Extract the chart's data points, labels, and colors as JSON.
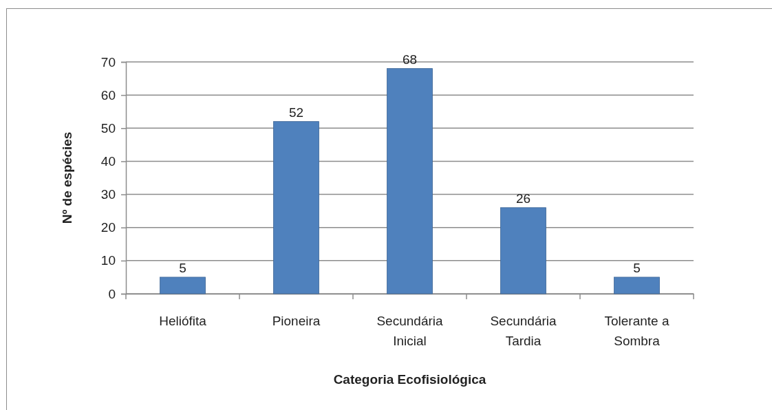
{
  "chart_data": {
    "type": "bar",
    "xlabel": "Categoria Ecofisiológica",
    "ylabel": "Nº de espécies",
    "categories": [
      "Heliófita",
      "Pioneira",
      "Secundária Inicial",
      "Secundária Tardia",
      "Tolerante a Sombra"
    ],
    "values": [
      5,
      52,
      68,
      26,
      5
    ],
    "color": "#4f81bd",
    "ylim": [
      0,
      70
    ],
    "yticks": [
      0,
      10,
      20,
      30,
      40,
      50,
      60,
      70
    ],
    "grid": "y",
    "data_labels": true
  }
}
